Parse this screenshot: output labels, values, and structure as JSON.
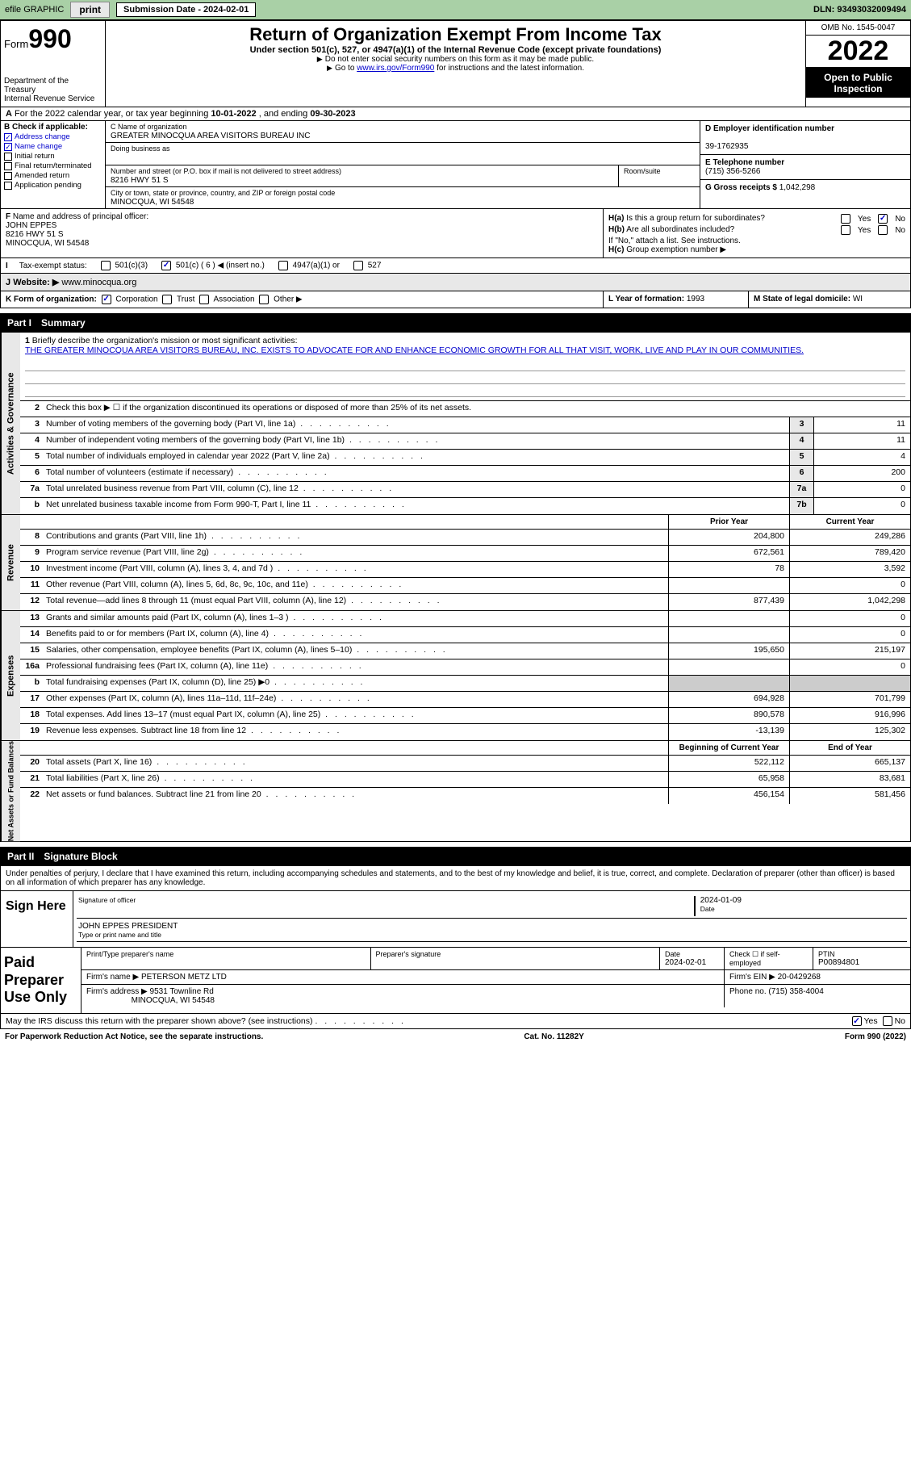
{
  "topbar": {
    "efile_label": "efile GRAPHIC",
    "print_btn": "print",
    "sub_date_label": "Submission Date - 2024-02-01",
    "dln": "DLN: 93493032009494"
  },
  "header": {
    "form_word": "Form",
    "form_number": "990",
    "title": "Return of Organization Exempt From Income Tax",
    "subtitle": "Under section 501(c), 527, or 4947(a)(1) of the Internal Revenue Code (except private foundations)",
    "note1": "Do not enter social security numbers on this form as it may be made public.",
    "note2_pre": "Go to ",
    "note2_link": "www.irs.gov/Form990",
    "note2_post": " for instructions and the latest information.",
    "dept": "Department of the Treasury",
    "irs": "Internal Revenue Service",
    "omb": "OMB No. 1545-0047",
    "year": "2022",
    "open": "Open to Public Inspection"
  },
  "row_a": {
    "label": "A",
    "text_pre": "For the 2022 calendar year, or tax year beginning ",
    "begin": "10-01-2022",
    "mid": " , and ending ",
    "end": "09-30-2023"
  },
  "section_b": {
    "label": "B Check if applicable:",
    "items": [
      {
        "label": "Address change",
        "checked": true
      },
      {
        "label": "Name change",
        "checked": true
      },
      {
        "label": "Initial return",
        "checked": false
      },
      {
        "label": "Final return/terminated",
        "checked": false
      },
      {
        "label": "Amended return",
        "checked": false
      },
      {
        "label": "Application pending",
        "checked": false
      }
    ]
  },
  "section_c": {
    "name_label": "C Name of organization",
    "name": "GREATER MINOCQUA AREA VISITORS BUREAU INC",
    "dba_label": "Doing business as",
    "dba": "",
    "street_label": "Number and street (or P.O. box if mail is not delivered to street address)",
    "room_label": "Room/suite",
    "street": "8216 HWY 51 S",
    "city_label": "City or town, state or province, country, and ZIP or foreign postal code",
    "city": "MINOCQUA, WI  54548"
  },
  "section_d": {
    "label": "D Employer identification number",
    "value": "39-1762935"
  },
  "section_e": {
    "label": "E Telephone number",
    "value": "(715) 356-5266"
  },
  "section_g": {
    "label": "G Gross receipts $",
    "value": "1,042,298"
  },
  "section_f": {
    "label": "F",
    "text": "Name and address of principal officer:",
    "name": "JOHN EPPES",
    "addr1": "8216 HWY 51 S",
    "addr2": "MINOCQUA, WI  54548"
  },
  "section_h": {
    "ha_label": "H(a)",
    "ha_text": "Is this a group return for subordinates?",
    "ha_yes": "Yes",
    "ha_no": "No",
    "hb_label": "H(b)",
    "hb_text": "Are all subordinates included?",
    "note": "If \"No,\" attach a list. See instructions.",
    "hc_label": "H(c)",
    "hc_text": "Group exemption number ▶"
  },
  "tax_status": {
    "label": "I",
    "text": "Tax-exempt status:",
    "opts": {
      "501c3": "501(c)(3)",
      "501c": "501(c)",
      "insert_no": "( 6 ) ◀ (insert no.)",
      "4947": "4947(a)(1) or",
      "527": "527"
    }
  },
  "website": {
    "label": "J",
    "text": "Website: ▶",
    "value": "www.minocqua.org"
  },
  "section_k": {
    "label": "K Form of organization:",
    "opts": [
      "Corporation",
      "Trust",
      "Association",
      "Other ▶"
    ]
  },
  "section_l": {
    "label": "L Year of formation:",
    "value": "1993"
  },
  "section_m": {
    "label": "M State of legal domicile:",
    "value": "WI"
  },
  "part1": {
    "label": "Part I",
    "title": "Summary"
  },
  "mission": {
    "num": "1",
    "label": "Briefly describe the organization's mission or most significant activities:",
    "text": "THE GREATER MINOCQUA AREA VISITORS BUREAU, INC. EXISTS TO ADVOCATE FOR AND ENHANCE ECONOMIC GROWTH FOR ALL THAT VISIT, WORK, LIVE AND PLAY IN OUR COMMUNITIES."
  },
  "line2": {
    "num": "2",
    "text": "Check this box ▶ ☐ if the organization discontinued its operations or disposed of more than 25% of its net assets."
  },
  "governance_lines": [
    {
      "num": "3",
      "text": "Number of voting members of the governing body (Part VI, line 1a)",
      "col": "3",
      "val": "11"
    },
    {
      "num": "4",
      "text": "Number of independent voting members of the governing body (Part VI, line 1b)",
      "col": "4",
      "val": "11"
    },
    {
      "num": "5",
      "text": "Total number of individuals employed in calendar year 2022 (Part V, line 2a)",
      "col": "5",
      "val": "4"
    },
    {
      "num": "6",
      "text": "Total number of volunteers (estimate if necessary)",
      "col": "6",
      "val": "200"
    },
    {
      "num": "7a",
      "text": "Total unrelated business revenue from Part VIII, column (C), line 12",
      "col": "7a",
      "val": "0"
    },
    {
      "num": "b",
      "text": "Net unrelated business taxable income from Form 990-T, Part I, line 11",
      "col": "7b",
      "val": "0"
    }
  ],
  "year_headers": {
    "prior": "Prior Year",
    "current": "Current Year",
    "beginning": "Beginning of Current Year",
    "end": "End of Year"
  },
  "revenue_lines": [
    {
      "num": "8",
      "text": "Contributions and grants (Part VIII, line 1h)",
      "prior": "204,800",
      "curr": "249,286"
    },
    {
      "num": "9",
      "text": "Program service revenue (Part VIII, line 2g)",
      "prior": "672,561",
      "curr": "789,420"
    },
    {
      "num": "10",
      "text": "Investment income (Part VIII, column (A), lines 3, 4, and 7d )",
      "prior": "78",
      "curr": "3,592"
    },
    {
      "num": "11",
      "text": "Other revenue (Part VIII, column (A), lines 5, 6d, 8c, 9c, 10c, and 11e)",
      "prior": "",
      "curr": "0"
    },
    {
      "num": "12",
      "text": "Total revenue—add lines 8 through 11 (must equal Part VIII, column (A), line 12)",
      "prior": "877,439",
      "curr": "1,042,298"
    }
  ],
  "expense_lines": [
    {
      "num": "13",
      "text": "Grants and similar amounts paid (Part IX, column (A), lines 1–3 )",
      "prior": "",
      "curr": "0"
    },
    {
      "num": "14",
      "text": "Benefits paid to or for members (Part IX, column (A), line 4)",
      "prior": "",
      "curr": "0"
    },
    {
      "num": "15",
      "text": "Salaries, other compensation, employee benefits (Part IX, column (A), lines 5–10)",
      "prior": "195,650",
      "curr": "215,197"
    },
    {
      "num": "16a",
      "text": "Professional fundraising fees (Part IX, column (A), line 11e)",
      "prior": "",
      "curr": "0"
    },
    {
      "num": "b",
      "text": "Total fundraising expenses (Part IX, column (D), line 25) ▶0",
      "prior": "SHADE",
      "curr": "SHADE"
    },
    {
      "num": "17",
      "text": "Other expenses (Part IX, column (A), lines 11a–11d, 11f–24e)",
      "prior": "694,928",
      "curr": "701,799"
    },
    {
      "num": "18",
      "text": "Total expenses. Add lines 13–17 (must equal Part IX, column (A), line 25)",
      "prior": "890,578",
      "curr": "916,996"
    },
    {
      "num": "19",
      "text": "Revenue less expenses. Subtract line 18 from line 12",
      "prior": "-13,139",
      "curr": "125,302"
    }
  ],
  "netassets_lines": [
    {
      "num": "20",
      "text": "Total assets (Part X, line 16)",
      "prior": "522,112",
      "curr": "665,137"
    },
    {
      "num": "21",
      "text": "Total liabilities (Part X, line 26)",
      "prior": "65,958",
      "curr": "83,681"
    },
    {
      "num": "22",
      "text": "Net assets or fund balances. Subtract line 21 from line 20",
      "prior": "456,154",
      "curr": "581,456"
    }
  ],
  "vert_labels": {
    "gov": "Activities & Governance",
    "rev": "Revenue",
    "exp": "Expenses",
    "net": "Net Assets or Fund Balances"
  },
  "part2": {
    "label": "Part II",
    "title": "Signature Block"
  },
  "penalties": "Under penalties of perjury, I declare that I have examined this return, including accompanying schedules and statements, and to the best of my knowledge and belief, it is true, correct, and complete. Declaration of preparer (other than officer) is based on all information of which preparer has any knowledge.",
  "sign": {
    "label": "Sign Here",
    "sig_label": "Signature of officer",
    "date_label": "Date",
    "date_val": "2024-01-09",
    "name_label": "Type or print name and title",
    "name_val": "JOHN EPPES  PRESIDENT"
  },
  "prep": {
    "label": "Paid Preparer Use Only",
    "print_label": "Print/Type preparer's name",
    "sig_label": "Preparer's signature",
    "date_label": "Date",
    "date_val": "2024-02-01",
    "check_label": "Check ☐ if self-employed",
    "ptin_label": "PTIN",
    "ptin_val": "P00894801",
    "firm_name_label": "Firm's name   ▶",
    "firm_name": "PETERSON METZ LTD",
    "firm_ein_label": "Firm's EIN ▶",
    "firm_ein": "20-0429268",
    "firm_addr_label": "Firm's address ▶",
    "firm_addr1": "9531 Townline Rd",
    "firm_addr2": "MINOCQUA, WI  54548",
    "phone_label": "Phone no.",
    "phone": "(715) 358-4004"
  },
  "discuss": {
    "text": "May the IRS discuss this return with the preparer shown above? (see instructions)",
    "yes": "Yes",
    "no": "No"
  },
  "footer": {
    "left": "For Paperwork Reduction Act Notice, see the separate instructions.",
    "mid": "Cat. No. 11282Y",
    "right": "Form 990 (2022)"
  }
}
